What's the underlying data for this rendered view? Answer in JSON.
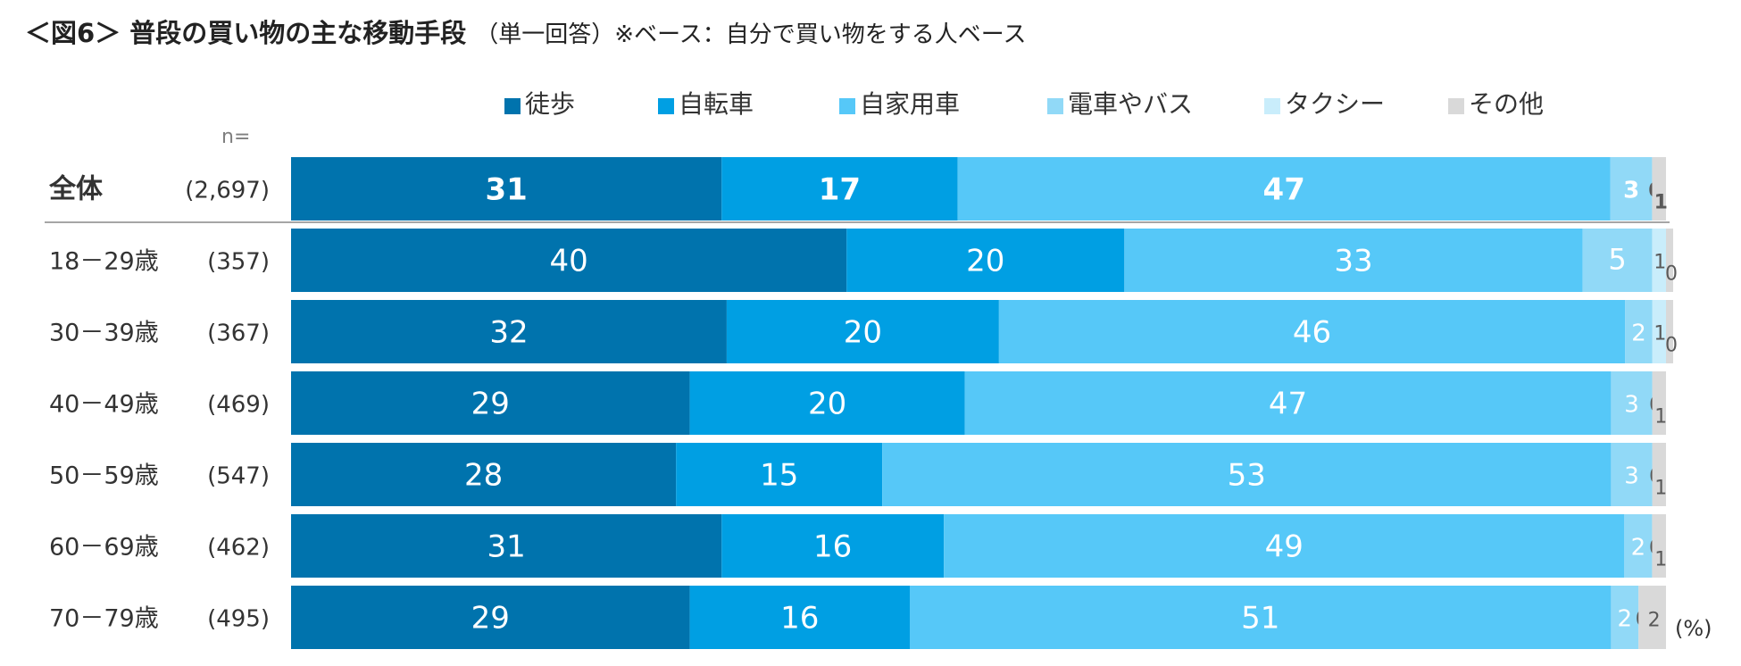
{
  "title": "＜図6＞ 普段の買い物の主な移動手段",
  "subtitle": "（単一回答）※ベース：自分で買い物をする人ベース",
  "n_label": "n=",
  "unit_label": "(%)",
  "colors": {
    "walk": "#0073AD",
    "bicycle": "#009FE3",
    "car": "#56C8F8",
    "train_bus": "#91D9F7",
    "taxi": "#C9EDFB",
    "other": "#D9D9D9",
    "divider": "#A6A6A6",
    "label_light": "#FFFFFF",
    "label_dark": "#595959"
  },
  "chart_data": {
    "type": "bar",
    "orientation": "horizontal",
    "stacked": true,
    "xlim": [
      0,
      100
    ],
    "legend_position": "top",
    "categories": [
      "全体",
      "18－29歳",
      "30－39歳",
      "40－49歳",
      "50－59歳",
      "60－69歳",
      "70－79歳"
    ],
    "n": [
      "(2,697)",
      "(357)",
      "(367)",
      "(469)",
      "(547)",
      "(462)",
      "(495)"
    ],
    "series": [
      {
        "name": "徒歩",
        "color": "#0073AD",
        "values": [
          31,
          40,
          32,
          29,
          28,
          31,
          29
        ]
      },
      {
        "name": "自転車",
        "color": "#009FE3",
        "values": [
          17,
          20,
          20,
          20,
          15,
          16,
          16
        ]
      },
      {
        "name": "自家用車",
        "color": "#56C8F8",
        "values": [
          47,
          33,
          46,
          47,
          53,
          49,
          51
        ]
      },
      {
        "name": "電車やバス",
        "color": "#91D9F7",
        "values": [
          3,
          5,
          2,
          3,
          3,
          2,
          2
        ]
      },
      {
        "name": "タクシー",
        "color": "#C9EDFB",
        "values": [
          0,
          1,
          1,
          0,
          0,
          0,
          0
        ]
      },
      {
        "name": "その他",
        "color": "#D9D9D9",
        "values": [
          1,
          0,
          0,
          1,
          1,
          1,
          2
        ]
      }
    ]
  }
}
